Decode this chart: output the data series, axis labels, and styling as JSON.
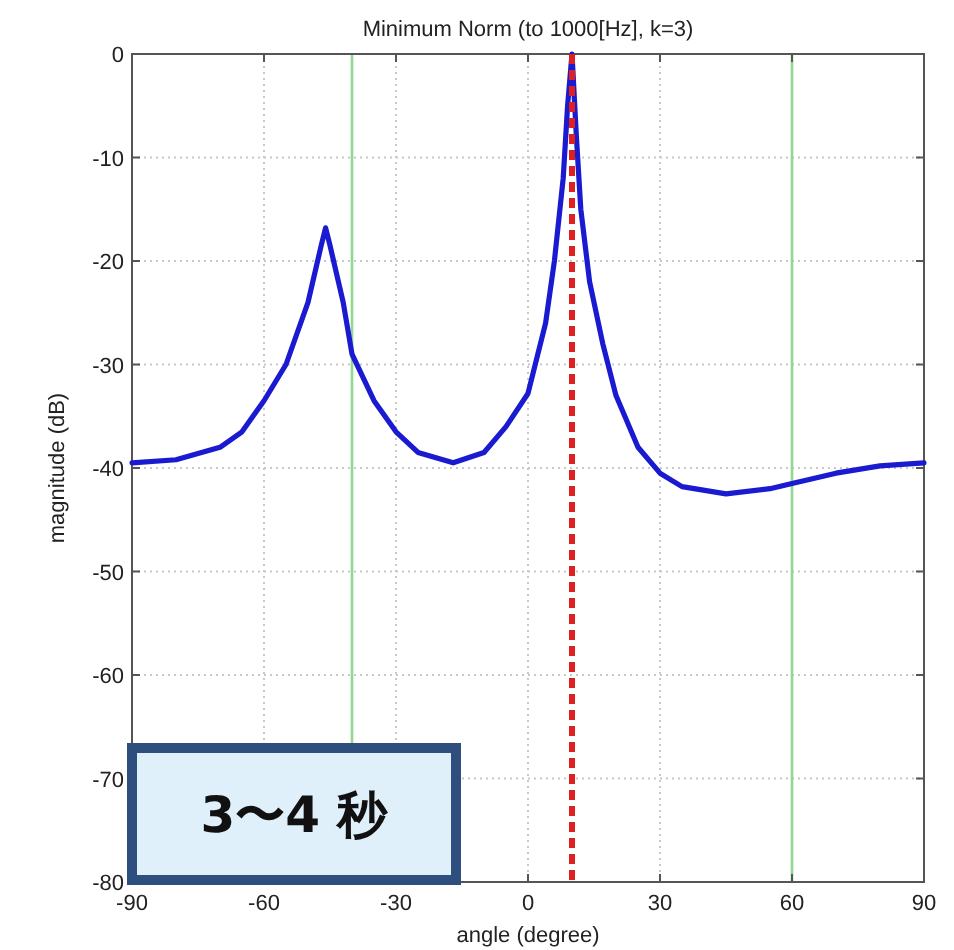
{
  "chart_data": {
    "type": "line",
    "title": "Minimum Norm (to 1000[Hz], k=3)",
    "xlabel": "angle (degree)",
    "ylabel": "magnitude (dB)",
    "annotations": [
      "3〜4 秒"
    ],
    "x": [
      -90,
      -80,
      -70,
      -65,
      -60,
      -55,
      -50,
      -47,
      -46,
      -45,
      -42,
      -40,
      -35,
      -30,
      -25,
      -17,
      -10,
      -5,
      0,
      4,
      6,
      8,
      9,
      10,
      11,
      12,
      14,
      17,
      20,
      25,
      30,
      35,
      45,
      55,
      60,
      70,
      80,
      90
    ],
    "series": [
      {
        "color": "#1a1ad0",
        "values": [
          -39.5,
          -39.2,
          -38,
          -36.5,
          -33.5,
          -30,
          -24,
          -18.5,
          -16.8,
          -18.5,
          -24,
          -29,
          -33.5,
          -36.5,
          -38.5,
          -39.5,
          -38.5,
          -36,
          -32.8,
          -26,
          -20,
          -12,
          -5,
          0,
          -8,
          -15,
          -22,
          -28,
          -33,
          -38,
          -40.5,
          -41.8,
          -42.5,
          -42,
          -41.5,
          -40.5,
          -39.8,
          -39.5
        ]
      }
    ],
    "ref_lines": [
      {
        "axis": "x",
        "value": -40,
        "color": "#8fd88f"
      },
      {
        "axis": "x",
        "value": 60,
        "color": "#8fd88f"
      },
      {
        "axis": "x",
        "value": 10,
        "color": "#dd2020",
        "line_style": "dashed"
      }
    ],
    "xlim": [
      -90,
      90
    ],
    "ylim": [
      -80,
      0
    ],
    "xticks": [
      -90,
      -60,
      -30,
      0,
      30,
      60,
      90
    ],
    "yticks": [
      -80,
      -70,
      -60,
      -50,
      -40,
      -30,
      -20,
      -10,
      0
    ],
    "grid": true,
    "line_style": "solid",
    "marker": "none"
  }
}
